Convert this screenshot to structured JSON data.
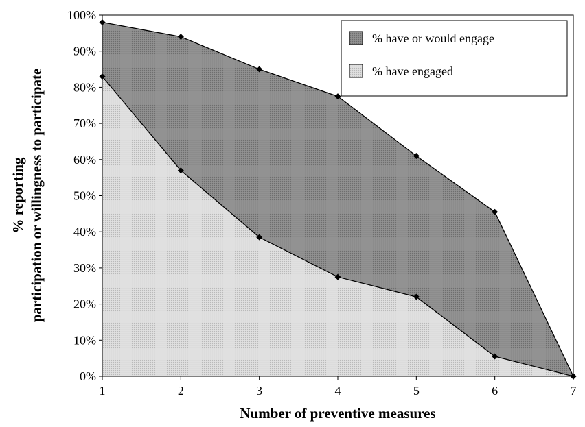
{
  "chart_data": {
    "type": "area",
    "title": "",
    "xlabel": "Number of preventive measures",
    "ylabel_lines": [
      "% reporting",
      "participation or willingness to participate"
    ],
    "x": [
      1,
      2,
      3,
      4,
      5,
      6,
      7
    ],
    "x_tick_labels": [
      "1",
      "2",
      "3",
      "4",
      "5",
      "6",
      "7"
    ],
    "y_tick_labels": [
      "0%",
      "10%",
      "20%",
      "30%",
      "40%",
      "50%",
      "60%",
      "70%",
      "80%",
      "90%",
      "100%"
    ],
    "xlim": [
      1,
      7
    ],
    "ylim": [
      0,
      100
    ],
    "grid": false,
    "legend_position": "top-right",
    "series": [
      {
        "name": "% have or would engage",
        "values": [
          98,
          94,
          85,
          77.5,
          61,
          45.5,
          0
        ],
        "fill": "#8c8c8c",
        "pattern": "dense-dots"
      },
      {
        "name": "% have engaged",
        "values": [
          83,
          57,
          38.5,
          27.5,
          22,
          5.5,
          0
        ],
        "fill": "#d9d9d9",
        "pattern": "light-dots"
      }
    ]
  }
}
